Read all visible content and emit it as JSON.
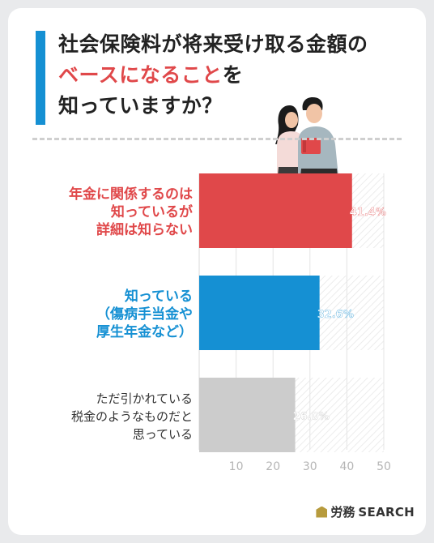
{
  "title": {
    "line1": "社会保険料が将来受け取る金額の",
    "line2_highlight": "ベースになること",
    "line2_rest": "を",
    "line3": "知っていますか？"
  },
  "colors": {
    "accent_blue": "#1590d3",
    "accent_red": "#e0484a",
    "gray": "#cccccc"
  },
  "chart_data": {
    "type": "bar",
    "orientation": "horizontal",
    "categories": [
      [
        "年金に関係するのは",
        "知っているが",
        "詳細は知らない"
      ],
      [
        "知っている",
        "（傷病手当金や",
        "厚生年金など）"
      ],
      [
        "ただ引かれている",
        "税金のようなものだと",
        "思っている"
      ]
    ],
    "values": [
      41.4,
      32.6,
      26.0
    ],
    "value_labels": [
      "41.4%",
      "32.6%",
      "26.0%"
    ],
    "bar_colors": [
      "#e0484a",
      "#1590d3",
      "#cccccc"
    ],
    "label_colors": [
      "#e0484a",
      "#1590d3",
      "#333333"
    ],
    "xlim": [
      0,
      50
    ],
    "xticks": [
      10,
      20,
      30,
      40,
      50
    ],
    "grid": true
  },
  "logo": {
    "text1": "労務",
    "text2": "SEARCH"
  }
}
